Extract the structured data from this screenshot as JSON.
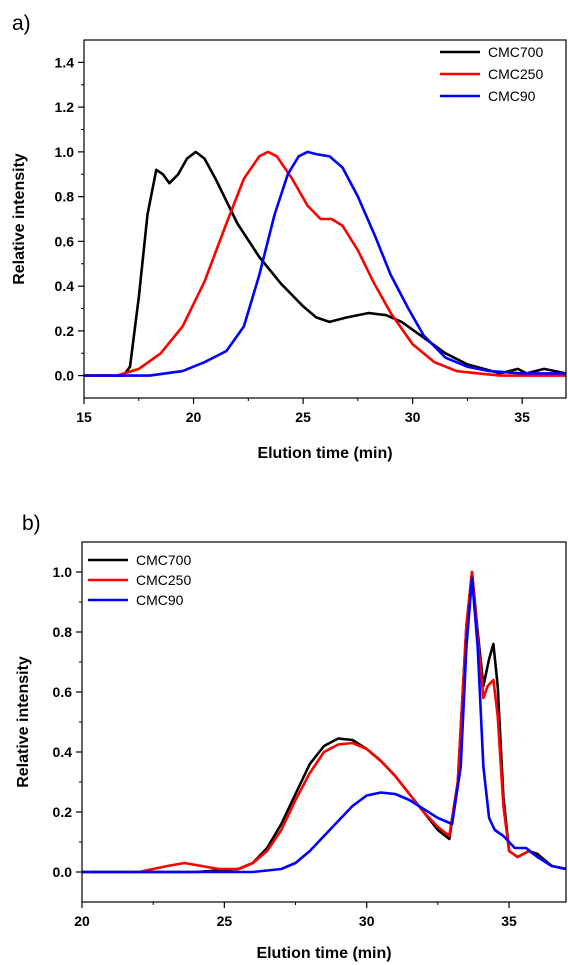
{
  "chart_data": [
    {
      "type": "line",
      "panel_label": "a)",
      "xlabel": "Elution time (min)",
      "ylabel": "Relative intensity",
      "xlim": [
        15,
        37
      ],
      "ylim": [
        -0.1,
        1.5
      ],
      "x_ticks": [
        15,
        20,
        25,
        30,
        35
      ],
      "y_ticks": [
        0.0,
        0.2,
        0.4,
        0.6,
        0.8,
        1.0,
        1.2,
        1.4
      ],
      "y_tick_labels": [
        "0.0",
        "0.2",
        "0.4",
        "0.6",
        "0.8",
        "1.0",
        "1.2",
        "1.4"
      ],
      "legend_position": "top-right",
      "grid": false,
      "series": [
        {
          "name": "CMC700",
          "color": "#000000",
          "x": [
            15,
            16.8,
            17.1,
            17.5,
            17.9,
            18.3,
            18.6,
            18.9,
            19.3,
            19.7,
            20.1,
            20.5,
            21.0,
            22.0,
            23.0,
            24.0,
            25.0,
            25.6,
            26.2,
            27.0,
            28.0,
            28.8,
            29.5,
            30.5,
            31.5,
            32.5,
            34.0,
            34.8,
            35.2,
            36.0,
            37
          ],
          "y": [
            0.0,
            0.0,
            0.04,
            0.35,
            0.72,
            0.92,
            0.9,
            0.86,
            0.9,
            0.97,
            1.0,
            0.97,
            0.88,
            0.68,
            0.53,
            0.41,
            0.31,
            0.26,
            0.24,
            0.26,
            0.28,
            0.27,
            0.24,
            0.17,
            0.1,
            0.05,
            0.01,
            0.03,
            0.01,
            0.03,
            0.01
          ]
        },
        {
          "name": "CMC250",
          "color": "#ff0000",
          "x": [
            15,
            16.5,
            17.5,
            18.5,
            19.5,
            20.5,
            21.5,
            22.3,
            23.0,
            23.4,
            23.8,
            24.5,
            25.2,
            25.8,
            26.3,
            26.8,
            27.5,
            28.2,
            29.0,
            30.0,
            31.0,
            32.0,
            33.0,
            34.0,
            35.0,
            36.0,
            37
          ],
          "y": [
            0.0,
            0.0,
            0.03,
            0.1,
            0.22,
            0.42,
            0.68,
            0.88,
            0.98,
            1.0,
            0.98,
            0.88,
            0.76,
            0.7,
            0.7,
            0.67,
            0.56,
            0.42,
            0.28,
            0.14,
            0.06,
            0.02,
            0.01,
            0.0,
            0.0,
            0.0,
            0.0
          ]
        },
        {
          "name": "CMC90",
          "color": "#0000ff",
          "x": [
            15,
            18.0,
            19.5,
            20.5,
            21.5,
            22.3,
            23.0,
            23.7,
            24.3,
            24.8,
            25.2,
            25.6,
            26.2,
            26.8,
            27.5,
            28.3,
            29.0,
            29.8,
            30.5,
            31.5,
            32.5,
            33.5,
            35.0,
            37
          ],
          "y": [
            0.0,
            0.0,
            0.02,
            0.06,
            0.11,
            0.22,
            0.45,
            0.72,
            0.9,
            0.98,
            1.0,
            0.99,
            0.98,
            0.93,
            0.8,
            0.62,
            0.45,
            0.3,
            0.18,
            0.08,
            0.04,
            0.02,
            0.01,
            0.01
          ]
        }
      ]
    },
    {
      "type": "line",
      "panel_label": "b)",
      "xlabel": "Elution time (min)",
      "ylabel": "Relative intensity",
      "xlim": [
        20,
        37
      ],
      "ylim": [
        -0.1,
        1.1
      ],
      "x_ticks": [
        20,
        25,
        30,
        35
      ],
      "y_ticks": [
        0.0,
        0.2,
        0.4,
        0.6,
        0.8,
        1.0
      ],
      "y_tick_labels": [
        "0.0",
        "0.2",
        "0.4",
        "0.6",
        "0.8",
        "1.0"
      ],
      "legend_position": "top-left",
      "grid": false,
      "series": [
        {
          "name": "CMC700",
          "color": "#000000",
          "x": [
            20,
            24.0,
            25.5,
            26.0,
            26.5,
            27.0,
            27.5,
            28.0,
            28.5,
            29.0,
            29.5,
            30.0,
            30.5,
            31.0,
            31.5,
            32.0,
            32.5,
            32.9,
            33.2,
            33.5,
            33.7,
            33.9,
            34.1,
            34.3,
            34.45,
            34.6,
            34.8,
            35.0,
            35.3,
            35.7,
            36.0,
            36.5,
            37
          ],
          "y": [
            0.0,
            0.0,
            0.01,
            0.03,
            0.08,
            0.16,
            0.26,
            0.36,
            0.42,
            0.445,
            0.44,
            0.41,
            0.37,
            0.32,
            0.26,
            0.2,
            0.14,
            0.11,
            0.3,
            0.82,
            1.0,
            0.8,
            0.62,
            0.71,
            0.76,
            0.62,
            0.25,
            0.07,
            0.05,
            0.07,
            0.06,
            0.02,
            0.01
          ]
        },
        {
          "name": "CMC250",
          "color": "#ff0000",
          "x": [
            20,
            22.0,
            23.0,
            23.6,
            24.2,
            24.8,
            25.5,
            26.0,
            26.5,
            27.0,
            27.5,
            28.0,
            28.5,
            29.0,
            29.5,
            30.0,
            30.5,
            31.0,
            31.5,
            32.0,
            32.5,
            32.9,
            33.2,
            33.5,
            33.7,
            33.9,
            34.1,
            34.25,
            34.45,
            34.6,
            34.8,
            35.0,
            35.3,
            35.7,
            36.0,
            36.5,
            37
          ],
          "y": [
            0.0,
            0.0,
            0.02,
            0.03,
            0.02,
            0.01,
            0.01,
            0.03,
            0.07,
            0.14,
            0.24,
            0.33,
            0.4,
            0.425,
            0.43,
            0.41,
            0.37,
            0.32,
            0.26,
            0.2,
            0.15,
            0.12,
            0.3,
            0.82,
            1.0,
            0.78,
            0.58,
            0.62,
            0.64,
            0.52,
            0.22,
            0.07,
            0.05,
            0.07,
            0.05,
            0.02,
            0.01
          ]
        },
        {
          "name": "CMC90",
          "color": "#0000ff",
          "x": [
            20,
            26.0,
            27.0,
            27.5,
            28.0,
            28.5,
            29.0,
            29.5,
            30.0,
            30.5,
            31.0,
            31.5,
            32.0,
            32.5,
            33.0,
            33.3,
            33.5,
            33.7,
            33.9,
            34.1,
            34.3,
            34.5,
            34.8,
            35.2,
            35.6,
            36.0,
            36.5,
            37
          ],
          "y": [
            0.0,
            0.0,
            0.01,
            0.03,
            0.07,
            0.12,
            0.17,
            0.22,
            0.255,
            0.265,
            0.26,
            0.24,
            0.21,
            0.18,
            0.16,
            0.35,
            0.75,
            0.98,
            0.75,
            0.35,
            0.18,
            0.14,
            0.12,
            0.08,
            0.08,
            0.05,
            0.02,
            0.01
          ]
        }
      ]
    }
  ]
}
